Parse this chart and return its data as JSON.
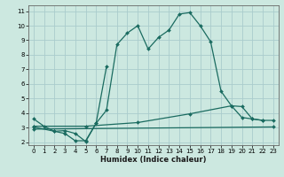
{
  "title": "",
  "xlabel": "Humidex (Indice chaleur)",
  "bg_color": "#cce8e0",
  "grid_color": "#aacccc",
  "line_color": "#1a6b60",
  "xlim": [
    -0.5,
    23.5
  ],
  "ylim": [
    1.8,
    11.4
  ],
  "xticks": [
    0,
    1,
    2,
    3,
    4,
    5,
    6,
    7,
    8,
    9,
    10,
    11,
    12,
    13,
    14,
    15,
    16,
    17,
    18,
    19,
    20,
    21,
    22,
    23
  ],
  "yticks": [
    2,
    3,
    4,
    5,
    6,
    7,
    8,
    9,
    10,
    11
  ],
  "curve1_x": [
    0,
    1,
    2,
    3,
    4,
    5,
    6,
    7,
    8,
    9,
    10,
    11,
    12,
    13,
    14,
    15,
    16,
    17,
    18,
    19,
    20,
    21,
    22
  ],
  "curve1_y": [
    3.6,
    3.1,
    2.75,
    2.8,
    2.6,
    2.05,
    3.3,
    4.2,
    8.7,
    9.5,
    10.0,
    8.4,
    9.2,
    9.7,
    10.8,
    10.9,
    10.0,
    8.9,
    5.5,
    4.5,
    3.7,
    3.6,
    3.5
  ],
  "curve2_x": [
    0,
    2,
    3,
    4,
    5,
    6,
    7
  ],
  "curve2_y": [
    3.05,
    2.75,
    2.6,
    2.1,
    2.1,
    3.3,
    7.2
  ],
  "curve3_x": [
    0,
    23
  ],
  "curve3_y": [
    2.9,
    3.05
  ],
  "curve4_x": [
    0,
    5,
    10,
    15,
    19,
    20,
    21,
    22,
    23
  ],
  "curve4_y": [
    3.1,
    3.1,
    3.35,
    3.95,
    4.5,
    4.45,
    3.6,
    3.5,
    3.5
  ]
}
